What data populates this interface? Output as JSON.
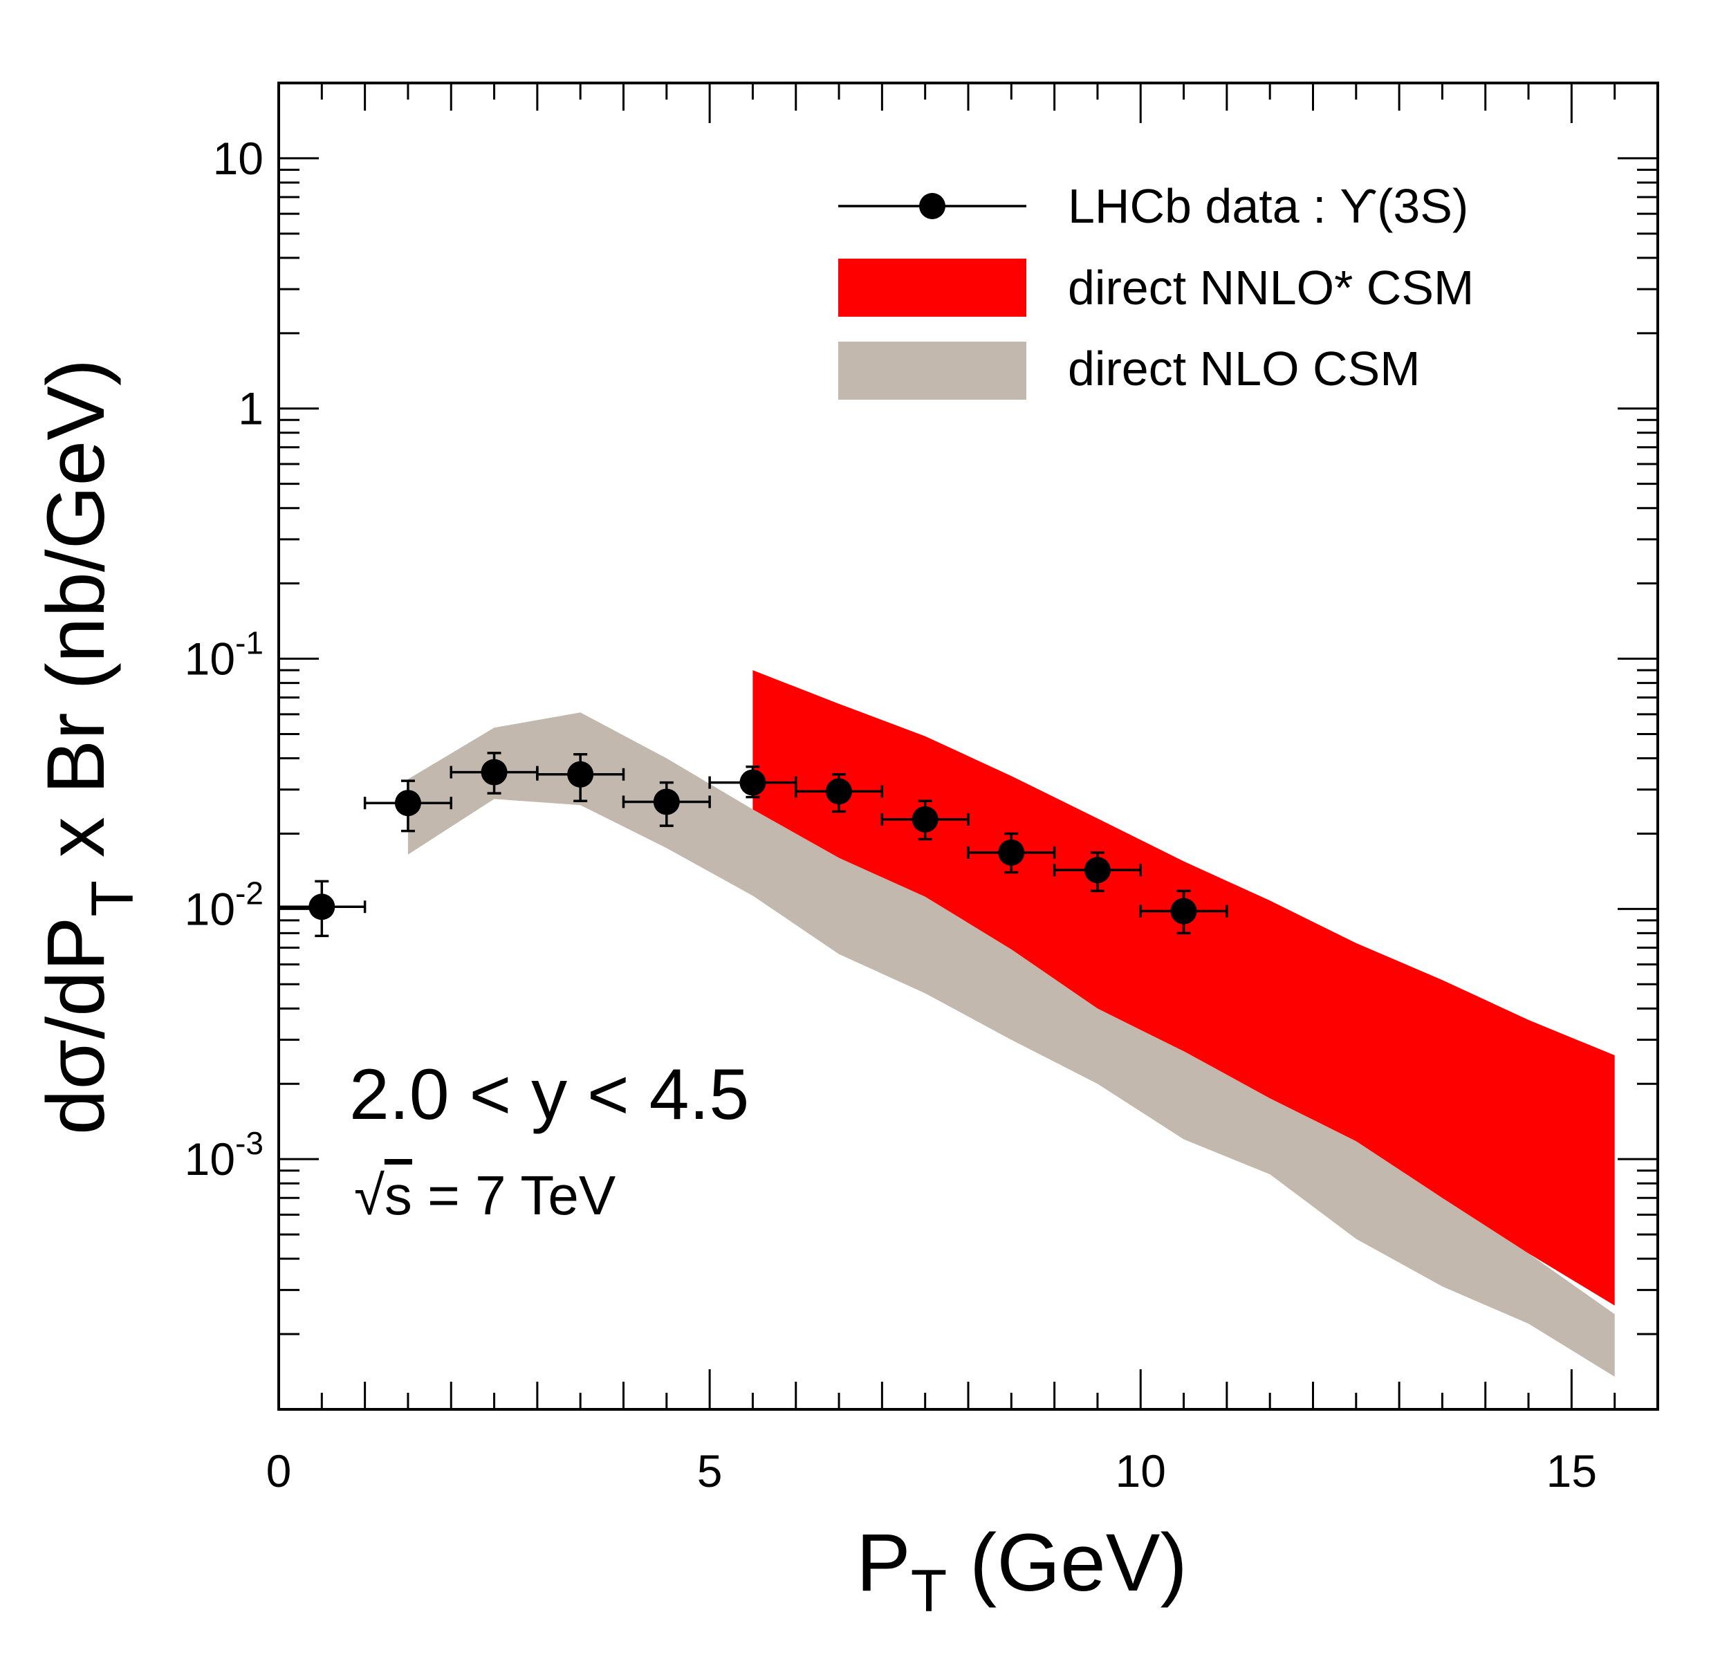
{
  "chart_data": {
    "type": "scatter",
    "title": "",
    "xlabel": {
      "main": "P",
      "sub": "T",
      "rest": " (GeV)"
    },
    "ylabel": {
      "prefix": "dσ/dP",
      "sub": "T",
      "suffix": " x Br (nb/GeV)"
    },
    "xlim": [
      0,
      16
    ],
    "ylim": [
      0.0001,
      20
    ],
    "yscale": "log",
    "xticks": [
      {
        "value": 0,
        "label": "0"
      },
      {
        "value": 5,
        "label": "5"
      },
      {
        "value": 10,
        "label": "10"
      },
      {
        "value": 15,
        "label": "15"
      }
    ],
    "yticks": [
      {
        "value": 10,
        "label": "10"
      },
      {
        "value": 1,
        "label": "1"
      },
      {
        "value": 0.1,
        "base": "10",
        "exp": "-1"
      },
      {
        "value": 0.01,
        "base": "10",
        "exp": "-2"
      },
      {
        "value": 0.001,
        "base": "10",
        "exp": "-3"
      }
    ],
    "legend_position": "top-right",
    "series": [
      {
        "name": "LHCb data : ϒ(3S)",
        "kind": "points",
        "color": "#000000",
        "points": [
          {
            "x": 0.5,
            "y": 0.0102,
            "xerr": 0.5,
            "ylo": 0.0078,
            "yhi": 0.0129
          },
          {
            "x": 1.5,
            "y": 0.0265,
            "xerr": 0.5,
            "ylo": 0.0205,
            "yhi": 0.0325
          },
          {
            "x": 2.5,
            "y": 0.0352,
            "xerr": 0.5,
            "ylo": 0.029,
            "yhi": 0.042
          },
          {
            "x": 3.5,
            "y": 0.0345,
            "xerr": 0.5,
            "ylo": 0.027,
            "yhi": 0.0415
          },
          {
            "x": 4.5,
            "y": 0.0268,
            "xerr": 0.5,
            "ylo": 0.0215,
            "yhi": 0.032
          },
          {
            "x": 5.5,
            "y": 0.032,
            "xerr": 0.5,
            "ylo": 0.028,
            "yhi": 0.037
          },
          {
            "x": 6.5,
            "y": 0.0295,
            "xerr": 0.5,
            "ylo": 0.0245,
            "yhi": 0.0345
          },
          {
            "x": 7.5,
            "y": 0.0228,
            "xerr": 0.5,
            "ylo": 0.019,
            "yhi": 0.027
          },
          {
            "x": 8.5,
            "y": 0.0168,
            "xerr": 0.5,
            "ylo": 0.014,
            "yhi": 0.02
          },
          {
            "x": 9.5,
            "y": 0.0143,
            "xerr": 0.5,
            "ylo": 0.0118,
            "yhi": 0.0168
          },
          {
            "x": 10.5,
            "y": 0.0098,
            "xerr": 0.5,
            "ylo": 0.008,
            "yhi": 0.0118
          }
        ]
      },
      {
        "name": "direct NNLO* CSM",
        "kind": "band",
        "color": "#ff0000",
        "x": [
          5.5,
          6.5,
          7.5,
          8.5,
          9.5,
          10.5,
          11.5,
          12.5,
          13.5,
          14.5,
          15.5
        ],
        "upper": [
          0.09,
          0.066,
          0.049,
          0.034,
          0.023,
          0.0155,
          0.0108,
          0.0073,
          0.0052,
          0.0036,
          0.0026
        ],
        "lower": [
          0.025,
          0.016,
          0.0112,
          0.0069,
          0.004,
          0.0027,
          0.00175,
          0.00118,
          0.0007,
          0.00042,
          0.00026
        ]
      },
      {
        "name": "direct NLO CSM",
        "kind": "band",
        "color": "#c2b8ad",
        "x": [
          1.5,
          2.5,
          3.5,
          4.5,
          5.5,
          6.5,
          7.5,
          8.5,
          9.5,
          10.5,
          11.5,
          12.5,
          13.5,
          14.5,
          15.5
        ],
        "upper": [
          0.033,
          0.053,
          0.061,
          0.04,
          0.025,
          0.016,
          0.0115,
          0.0071,
          0.0041,
          0.0027,
          0.00175,
          0.00118,
          0.0007,
          0.00042,
          0.00024
        ],
        "lower": [
          0.0165,
          0.0275,
          0.026,
          0.0175,
          0.0113,
          0.0066,
          0.0046,
          0.003,
          0.002,
          0.0012,
          0.00087,
          0.00048,
          0.00031,
          0.00022,
          0.000135
        ]
      }
    ],
    "annotations": [
      {
        "id": "rapidity",
        "text": "2.0 < y < 4.5"
      },
      {
        "id": "energy",
        "root": "√",
        "var": "s",
        "text": " = 7 TeV"
      }
    ]
  }
}
